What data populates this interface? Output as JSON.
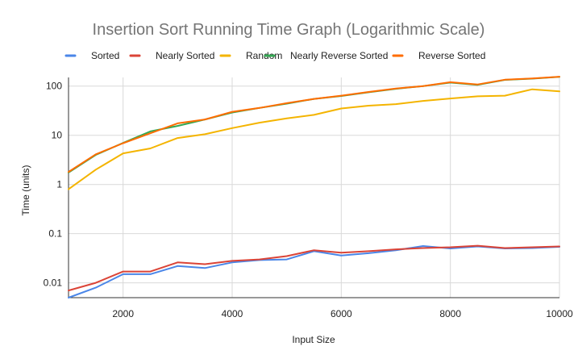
{
  "chart_data": {
    "type": "line",
    "title": "Insertion Sort Running Time Graph (Logarithmic Scale)",
    "xlabel": "Input Size",
    "ylabel": "Time (units)",
    "x_scale": "linear",
    "y_scale": "log",
    "xlim": [
      1000,
      10000
    ],
    "ylim": [
      0.005,
      150
    ],
    "x_ticks": [
      2000,
      4000,
      6000,
      8000,
      10000
    ],
    "x_tick_labels": [
      "2000",
      "4000",
      "6000",
      "8000",
      "10000"
    ],
    "y_ticks": [
      0.01,
      0.1,
      1,
      10,
      100
    ],
    "y_tick_labels": [
      "0.01",
      "0.1",
      "1",
      "10",
      "100"
    ],
    "grid": true,
    "legend_position": "top",
    "x": [
      1000,
      1500,
      2000,
      2500,
      3000,
      3500,
      4000,
      4500,
      5000,
      5500,
      6000,
      6500,
      7000,
      7500,
      8000,
      8500,
      9000,
      9500,
      10000
    ],
    "series": [
      {
        "name": "Sorted",
        "color": "#4a86e8",
        "values": [
          0.005,
          0.008,
          0.015,
          0.015,
          0.022,
          0.02,
          0.026,
          0.029,
          0.03,
          0.044,
          0.036,
          0.04,
          0.046,
          0.056,
          0.05,
          0.055,
          0.05,
          0.051,
          0.054
        ]
      },
      {
        "name": "Nearly Sorted",
        "color": "#db4437",
        "values": [
          0.007,
          0.01,
          0.017,
          0.017,
          0.026,
          0.024,
          0.028,
          0.03,
          0.035,
          0.046,
          0.041,
          0.044,
          0.048,
          0.051,
          0.053,
          0.057,
          0.051,
          0.053,
          0.055
        ]
      },
      {
        "name": "Random",
        "color": "#f4b400",
        "values": [
          0.8,
          2.0,
          4.3,
          5.4,
          8.8,
          10.5,
          14,
          18,
          22,
          26,
          35,
          40,
          43,
          50,
          56,
          62,
          64,
          86,
          78
        ]
      },
      {
        "name": "Nearly Reverse Sorted",
        "color": "#34a853",
        "values": [
          1.75,
          4.0,
          7.0,
          12.0,
          15.5,
          21,
          29,
          36,
          44,
          55,
          63,
          75,
          88,
          100,
          118,
          106,
          134,
          142,
          154
        ]
      },
      {
        "name": "Reverse Sorted",
        "color": "#ff6d01",
        "values": [
          1.8,
          4.1,
          6.9,
          11.0,
          17.5,
          21,
          30,
          36,
          45,
          55,
          64,
          76,
          89,
          100,
          120,
          108,
          135,
          143,
          155
        ]
      }
    ]
  }
}
